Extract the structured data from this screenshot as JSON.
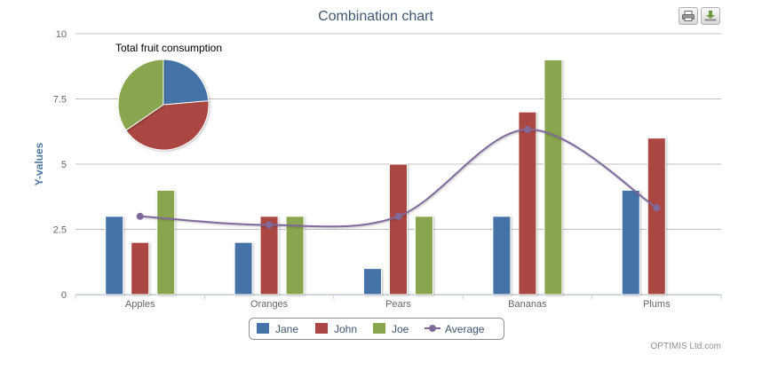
{
  "chart_data": {
    "type": "bar",
    "title": "Combination chart",
    "ylabel": "Y-values",
    "categories": [
      "Apples",
      "Oranges",
      "Pears",
      "Bananas",
      "Plums"
    ],
    "ylim": [
      0,
      10
    ],
    "yticks": [
      0,
      2.5,
      5,
      7.5,
      10
    ],
    "ytick_labels": [
      "0",
      "2.5",
      "5",
      "7.5",
      "10"
    ],
    "grid": true,
    "series": [
      {
        "name": "Jane",
        "type": "bar",
        "color": "#4572A7",
        "values": [
          3,
          2,
          1,
          3,
          4
        ]
      },
      {
        "name": "John",
        "type": "bar",
        "color": "#AA4643",
        "values": [
          2,
          3,
          5,
          7,
          6
        ]
      },
      {
        "name": "Joe",
        "type": "bar",
        "color": "#89A54E",
        "values": [
          4,
          3,
          3,
          9,
          0
        ]
      },
      {
        "name": "Average",
        "type": "line",
        "color": "#80699B",
        "values": [
          3,
          2.67,
          3,
          6.33,
          3.33
        ]
      }
    ],
    "pie": {
      "title": "Total fruit consumption",
      "slices": [
        {
          "name": "Jane",
          "value": 13,
          "color": "#4572A7"
        },
        {
          "name": "John",
          "value": 23,
          "color": "#AA4643"
        },
        {
          "name": "Joe",
          "value": 19,
          "color": "#89A54E"
        }
      ]
    },
    "legend_position": "bottom-center"
  },
  "credits": "OPTIMIS Ltd.com",
  "buttons": {
    "print": "print-icon",
    "export": "download-icon"
  }
}
